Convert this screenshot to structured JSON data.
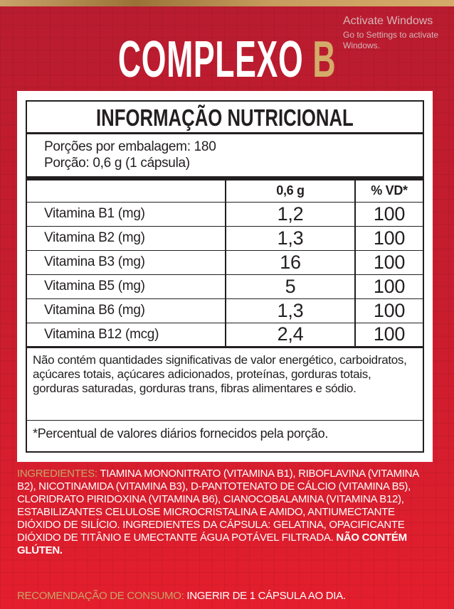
{
  "colors": {
    "background": "#c81d2e",
    "accent_gold": "#d4ac6a",
    "text_dark": "#231f20"
  },
  "title": {
    "main": "COMPLEXO",
    "accent": "B"
  },
  "label": {
    "heading": "INFORMAÇÃO NUTRICIONAL",
    "servings_per_package": "Porções por embalagem: 180",
    "serving_size": "Porção: 0,6 g (1 cápsula)",
    "columns": [
      "",
      "0,6 g",
      "% VD*"
    ],
    "rows": [
      {
        "name": "Vitamina B1 (mg)",
        "amount": "1,2",
        "dv": "100"
      },
      {
        "name": "Vitamina B2 (mg)",
        "amount": "1,3",
        "dv": "100"
      },
      {
        "name": "Vitamina B3 (mg)",
        "amount": "16",
        "dv": "100"
      },
      {
        "name": "Vitamina B5 (mg)",
        "amount": "5",
        "dv": "100"
      },
      {
        "name": "Vitamina B6 (mg)",
        "amount": "1,3",
        "dv": "100"
      },
      {
        "name": "Vitamina B12 (mcg)",
        "amount": "2,4",
        "dv": "100"
      }
    ],
    "note": "Não contém quantidades significativas de valor energético, carboidratos, açúcares totais, açúcares adicionados, proteínas, gorduras totais, gorduras saturadas, gorduras trans, fibras alimentares e sódio.",
    "footnote": "*Percentual de valores diários fornecidos pela porção."
  },
  "ingredients": {
    "label": "INGREDIENTES:",
    "text": " TIAMINA MONONITRATO (VITAMINA B1), RIBOFLAVINA (VITAMINA B2), NICOTINAMIDA (VITAMINA B3), D-PANTOTENATO DE CÁLCIO (VITAMINA B5), CLORIDRATO PIRIDOXINA (VITAMINA B6), CIANOCOBALAMINA (VITAMINA B12), ESTABILIZANTES CELULOSE MICROCRISTALINA E AMIDO, ANTIUMECTANTE DIÓXIDO DE SILÍCIO. INGREDIENTES DA CÁPSULA: GELATINA, OPACIFICANTE DIÓXIDO DE TITÂNIO E UMECTANTE ÁGUA POTÁVEL FILTRADA. ",
    "gluten": "NÃO CONTÉM GLÚTEN."
  },
  "recommendation": {
    "label": "RECOMENDAÇÃO DE CONSUMO:",
    "text": " INGERIR DE 1 CÁPSULA AO DIA."
  },
  "watermark": {
    "line1": "Activate Windows",
    "line2": "Go to Settings to activate Windows."
  }
}
